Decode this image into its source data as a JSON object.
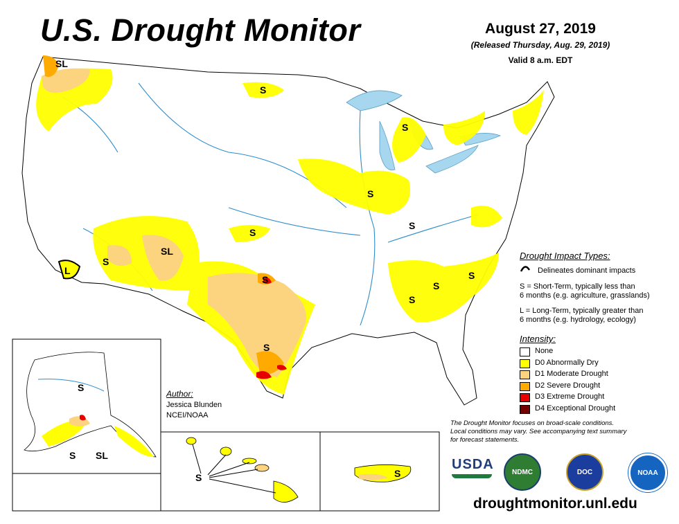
{
  "header": {
    "title": "U.S. Drought Monitor",
    "date": "August 27, 2019",
    "released": "(Released Thursday, Aug. 29, 2019)",
    "valid": "Valid 8 a.m. EDT"
  },
  "impact_types": {
    "heading": "Drought Impact Types:",
    "delineates": "Delineates dominant impacts",
    "short_term": "S = Short-Term, typically less than",
    "short_term_2": "6 months (e.g. agriculture, grasslands)",
    "long_term": "L = Long-Term, typically greater than",
    "long_term_2": "6 months (e.g. hydrology, ecology)"
  },
  "intensity": {
    "heading": "Intensity:",
    "levels": [
      {
        "label": "None",
        "color": "#ffffff"
      },
      {
        "label": "D0 Abnormally Dry",
        "color": "#ffff00"
      },
      {
        "label": "D1 Moderate Drought",
        "color": "#fcd37f"
      },
      {
        "label": "D2 Severe Drought",
        "color": "#ffaa00"
      },
      {
        "label": "D3 Extreme Drought",
        "color": "#e60000"
      },
      {
        "label": "D4 Exceptional Drought",
        "color": "#730000"
      }
    ]
  },
  "author": {
    "heading": "Author:",
    "name": "Jessica Blunden",
    "org": "NCEI/NOAA"
  },
  "note": {
    "line1": "The Drought Monitor focuses on broad-scale conditions.",
    "line2": "Local conditions may vary. See accompanying text summary",
    "line3": "for forecast statements."
  },
  "map_labels": {
    "sl_nw": "SL",
    "s_nd": "S",
    "s_mi": "S",
    "s_ia": "S",
    "s_oh": "S",
    "s_ks": "S",
    "sl_nm": "SL",
    "s_az": "S",
    "l_ca": "L",
    "s_ok": "S",
    "s_tx": "S",
    "s_al": "S",
    "s_ga": "S",
    "s_sc": "S",
    "s_ak": "S",
    "s_ak2": "S",
    "sl_ak": "SL",
    "s_hi": "S",
    "s_pr": "S"
  },
  "logos": {
    "usda": "USDA",
    "ndmc": "NDMC",
    "doc": "DOC",
    "noaa": "NOAA"
  },
  "footer": {
    "url": "droughtmonitor.unl.edu"
  }
}
